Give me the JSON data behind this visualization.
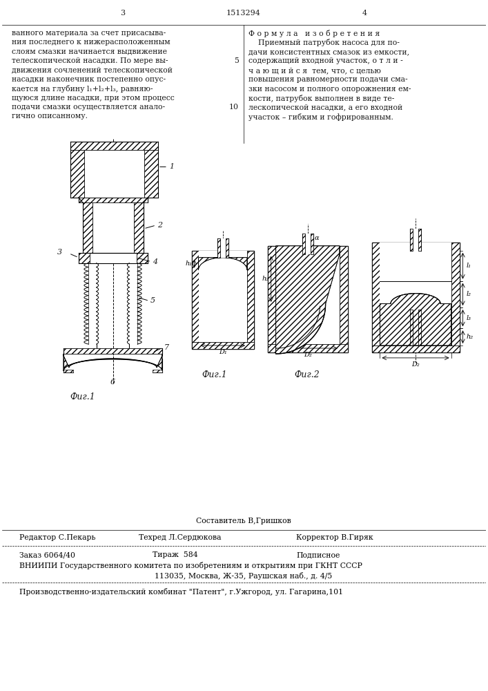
{
  "page_width": 7.07,
  "page_height": 10.0,
  "bg_color": "#ffffff",
  "text_color": "#1a1a1a",
  "col1_header": "3",
  "col2_header": "1513294",
  "col3_header": "4",
  "left_text_lines": [
    "ванного материала за счет присасыва-",
    "ния последнего к нижерасположенным",
    "слоям смазки начинается выдвижение",
    "телескопической насадки. По мере вы-",
    "движения сочленений телескопической",
    "насадки наконечник постепенно опус-",
    "кается на глубину l₁+l₂+l₃, равняю-",
    "щуюся длине насадки, при этом процесс",
    "подачи смазки осуществляется анало-",
    "гично описанному."
  ],
  "line_numbers": [
    "5",
    "10"
  ],
  "right_text_title": "Ф о р м у л а   и з о б р е т е н и я",
  "right_text_lines": [
    "    Приемный патрубок насоса для по-",
    "дачи консистентных смазок из емкости,",
    "содержащий входной участок, о т л и -",
    "ч а ю щ и й с я  тем, что, с целью",
    "повышения равномерности подачи сма-",
    "зки насосом и полного опорожнения ем-",
    "кости, патрубок выполнен в виде те-",
    "лескопической насадки, а его входной",
    "участок – гибким и гофрированным."
  ],
  "fig1_label": "Фиг.1",
  "fig2_label": "Фиг.2",
  "footer_compiler": "Составитель В,Гришков",
  "footer_editor": "Редактор С.Пекарь",
  "footer_tech": "Техред Л.Сердюкова",
  "footer_corrector": "Корректор В.Гиряк",
  "footer_order": "Заказ 6064/40",
  "footer_print": "Тираж  584",
  "footer_sub": "Подписное",
  "footer_vniip": "ВНИИПИ Государственного комитета по изобретениям и открытиям при ГКНТ СССР",
  "footer_address": "113035, Москва, Ж-35, Раушская наб., д. 4/5",
  "footer_plant": "Производственно-издательский комбинат \"Патент\", г.Ужгород, ул. Гагарина,101"
}
